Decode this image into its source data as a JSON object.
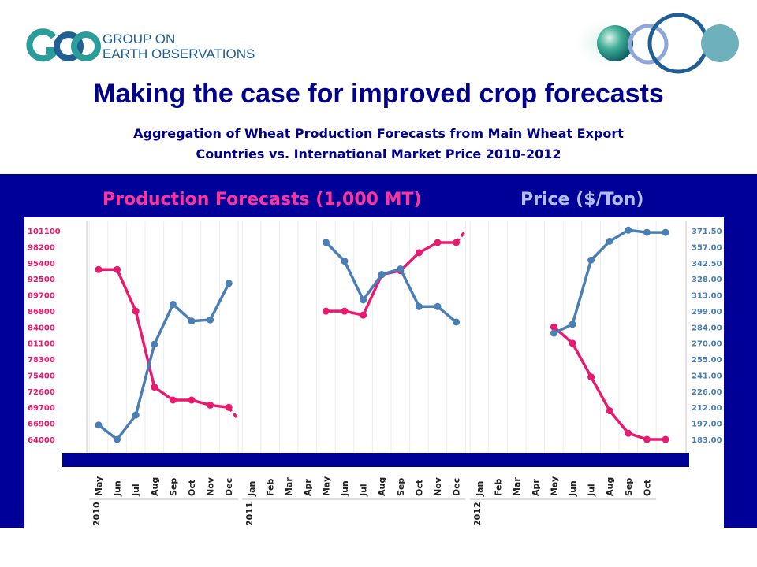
{
  "header": {
    "logo_line1": "GROUP ON",
    "logo_line2": "EARTH OBSERVATIONS",
    "title": "Making the case for improved crop forecasts",
    "subtitle_line1": "Aggregation of Wheat Production Forecasts from Main Wheat Export",
    "subtitle_line2": "Countries vs. International Market Price 2010-2012"
  },
  "colors": {
    "production": "#e8196e",
    "price": "#4a7fb5",
    "panel": "#000099",
    "title": "#00008b"
  },
  "chart_data": {
    "type": "line",
    "production_header": "Production Forecasts (1,000 MT)",
    "price_header": "Price ($/Ton)",
    "left_ticks": [
      101100,
      98200,
      95400,
      92500,
      89700,
      86800,
      84000,
      81100,
      78300,
      75400,
      72600,
      69700,
      66900,
      64000
    ],
    "right_ticks": [
      "371.50",
      "357.00",
      "342.50",
      "328.00",
      "313.00",
      "299.00",
      "284.00",
      "270.00",
      "255.00",
      "241.00",
      "226.00",
      "212.00",
      "197.00",
      "183.00"
    ],
    "left_ylim": [
      64000,
      101100
    ],
    "right_ylim": [
      183,
      371.5
    ],
    "groups": [
      {
        "year": "2010",
        "months": [
          "May",
          "Jun",
          "Jul",
          "Aug",
          "Sep",
          "Oct",
          "Nov",
          "Dec"
        ]
      },
      {
        "year": "2011",
        "months": [
          "Jan",
          "Feb",
          "Mar",
          "Apr",
          "May",
          "Jun",
          "Jul",
          "Aug",
          "Sep",
          "Oct",
          "Nov",
          "Dec"
        ]
      },
      {
        "year": "2012",
        "months": [
          "Jan",
          "Feb",
          "Mar",
          "Apr",
          "May",
          "Jun",
          "Jul",
          "Aug",
          "Sep",
          "Oct"
        ]
      }
    ],
    "series": [
      {
        "name": "Production Forecasts (1,000 MT)",
        "axis": "left",
        "segments": [
          {
            "group": 0,
            "points": [
              [
                0,
                94200
              ],
              [
                1,
                94200
              ],
              [
                2,
                86800
              ],
              [
                3,
                73300
              ],
              [
                4,
                71000
              ],
              [
                5,
                71000
              ],
              [
                6,
                70100
              ],
              [
                7,
                69700
              ]
            ],
            "extension": [
              8,
              67600
            ]
          },
          {
            "group": 1,
            "points": [
              [
                4,
                86800
              ],
              [
                5,
                86800
              ],
              [
                6,
                86100
              ],
              [
                7,
                93300
              ],
              [
                8,
                94000
              ],
              [
                9,
                97200
              ],
              [
                10,
                99000
              ],
              [
                11,
                99000
              ]
            ],
            "extension": [
              12,
              101100
            ]
          },
          {
            "group": 2,
            "points": [
              [
                4,
                84000
              ],
              [
                5,
                81100
              ],
              [
                6,
                75100
              ],
              [
                7,
                69100
              ],
              [
                8,
                65100
              ],
              [
                9,
                64000
              ],
              [
                10,
                64000
              ]
            ]
          }
        ]
      },
      {
        "name": "Price ($/Ton)",
        "axis": "right",
        "segments": [
          {
            "group": 0,
            "points": [
              [
                0,
                196
              ],
              [
                1,
                183
              ],
              [
                2,
                205
              ],
              [
                3,
                269
              ],
              [
                4,
                305
              ],
              [
                5,
                290
              ],
              [
                6,
                291
              ],
              [
                7,
                324
              ]
            ]
          },
          {
            "group": 1,
            "points": [
              [
                4,
                361
              ],
              [
                5,
                344
              ],
              [
                6,
                309
              ],
              [
                7,
                332
              ],
              [
                8,
                337
              ],
              [
                9,
                303
              ],
              [
                10,
                303
              ],
              [
                11,
                289
              ]
            ]
          },
          {
            "group": 2,
            "points": [
              [
                4,
                279
              ],
              [
                5,
                287
              ],
              [
                6,
                345
              ],
              [
                7,
                362
              ],
              [
                8,
                372
              ],
              [
                9,
                370
              ],
              [
                10,
                370
              ]
            ]
          }
        ]
      }
    ]
  }
}
